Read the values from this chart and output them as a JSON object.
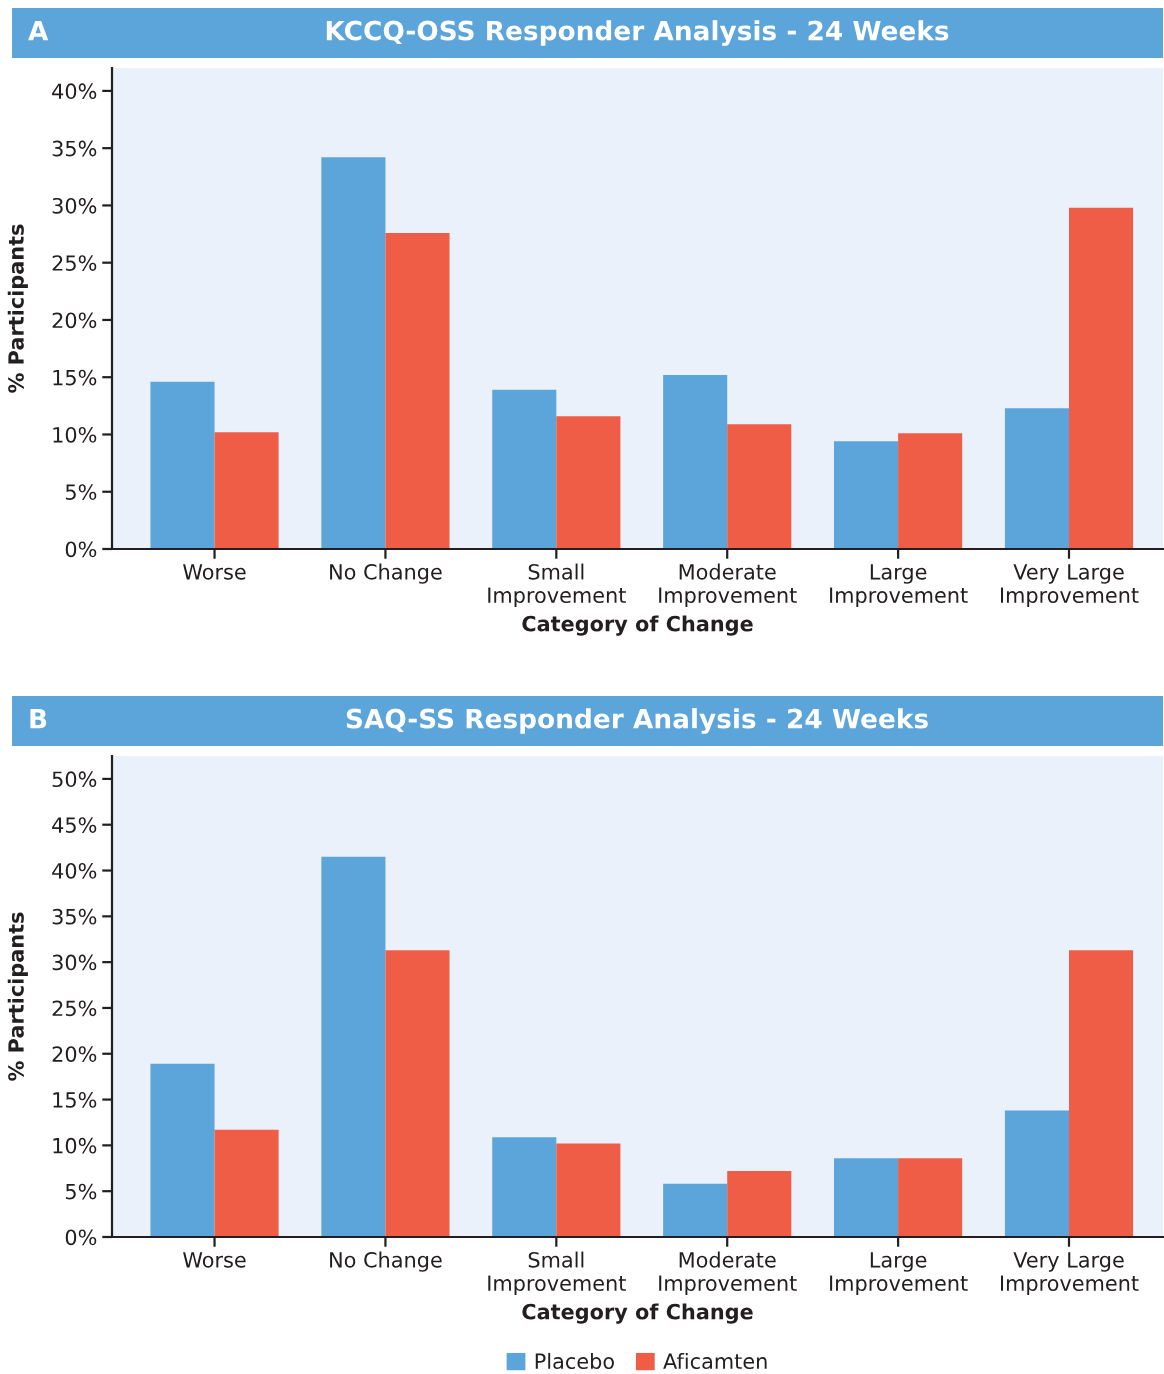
{
  "chart_data": [
    {
      "type": "bar",
      "title": "KCCQ-OSS Responder Analysis - 24 Weeks",
      "annotations": [
        "A"
      ],
      "categories": [
        "Worse",
        "No Change",
        "Small\nImprovement",
        "Moderate\nImprovement",
        "Large\nImprovement",
        "Very Large\nImprovement"
      ],
      "series": [
        {
          "color": "#5ba5da",
          "values": [
            14.6,
            34.2,
            13.9,
            15.2,
            9.4,
            12.3
          ]
        },
        {
          "color": "#ef5d47",
          "values": [
            10.2,
            27.6,
            11.6,
            10.9,
            10.1,
            29.8
          ]
        }
      ],
      "xlabel": "Category of Change",
      "ylabel": "% Participants",
      "ylim": [
        0,
        42
      ],
      "yticks": [
        {
          "value": 0,
          "label": "0%"
        },
        {
          "value": 5,
          "label": "5%"
        },
        {
          "value": 10,
          "label": "10%"
        },
        {
          "value": 15,
          "label": "15%"
        },
        {
          "value": 20,
          "label": "20%"
        },
        {
          "value": 25,
          "label": "25%"
        },
        {
          "value": 30,
          "label": "30%"
        },
        {
          "value": 35,
          "label": "35%"
        },
        {
          "value": 40,
          "label": "40%"
        }
      ]
    },
    {
      "type": "bar",
      "title": "SAQ-SS Responder Analysis - 24 Weeks",
      "annotations": [
        "B"
      ],
      "categories": [
        "Worse",
        "No Change",
        "Small\nImprovement",
        "Moderate\nImprovement",
        "Large\nImprovement",
        "Very Large\nImprovement"
      ],
      "series": [
        {
          "name": "Placebo",
          "color": "#5ba5da",
          "values": [
            18.9,
            41.5,
            10.9,
            5.8,
            8.6,
            13.8
          ]
        },
        {
          "name": "Aficamten",
          "color": "#ef5d47",
          "values": [
            11.7,
            31.3,
            10.2,
            7.2,
            8.6,
            31.3
          ]
        }
      ],
      "xlabel": "Category of Change",
      "ylabel": "% Participants",
      "ylim": [
        0,
        52.5
      ],
      "yticks": [
        {
          "value": 0,
          "label": "0%"
        },
        {
          "value": 5,
          "label": "5%"
        },
        {
          "value": 10,
          "label": "10%"
        },
        {
          "value": 15,
          "label": "15%"
        },
        {
          "value": 20,
          "label": "20%"
        },
        {
          "value": 25,
          "label": "25%"
        },
        {
          "value": 30,
          "label": "30%"
        },
        {
          "value": 35,
          "label": "35%"
        },
        {
          "value": 40,
          "label": "40%"
        },
        {
          "value": 45,
          "label": "45%"
        },
        {
          "value": 50,
          "label": "50%"
        }
      ],
      "legend": "bottom"
    }
  ]
}
